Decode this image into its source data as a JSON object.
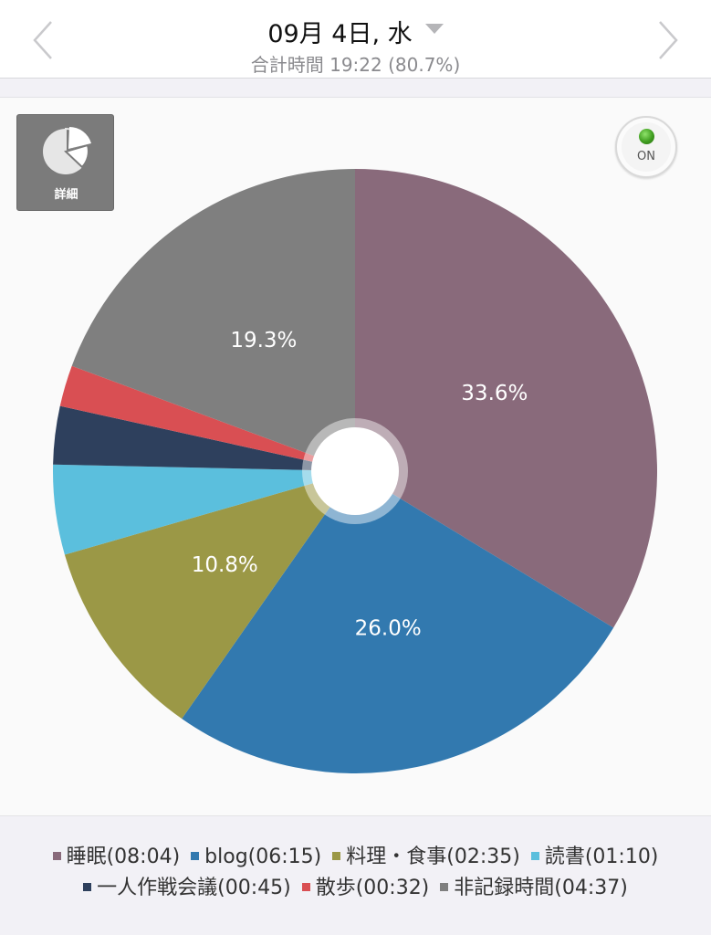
{
  "header": {
    "date": "09月 4日, 水",
    "subtitle": "合計時間 19:22 (80.7%)"
  },
  "detail_button": {
    "label": "詳細"
  },
  "toggle": {
    "label": "ON"
  },
  "chart_data": {
    "type": "pie",
    "slices": [
      {
        "label": "睡眠(08:04)",
        "value": 33.6,
        "display": "33.6%",
        "color": "#896a7b"
      },
      {
        "label": "blog(06:15)",
        "value": 26.0,
        "display": "26.0%",
        "color": "#3279af"
      },
      {
        "label": "料理・食事(02:35)",
        "value": 10.8,
        "display": "10.8%",
        "color": "#9b9846"
      },
      {
        "label": "読書(01:10)",
        "value": 4.8,
        "display": "",
        "color": "#5bbfdd"
      },
      {
        "label": "一人作戦会議(00:45)",
        "value": 3.1,
        "display": "",
        "color": "#2e405d"
      },
      {
        "label": "散歩(00:32)",
        "value": 2.2,
        "display": "",
        "color": "#d94f53"
      },
      {
        "label": "非記録時間(04:37)",
        "value": 19.3,
        "display": "19.3%",
        "color": "#7f7f7f"
      }
    ]
  },
  "legend": {
    "row1": [
      {
        "label": "睡眠(08:04)",
        "color": "#896a7b"
      },
      {
        "label": "blog(06:15)",
        "color": "#3279af"
      },
      {
        "label": "料理・食事(02:35)",
        "color": "#9b9846"
      },
      {
        "label": "読書(01:10)",
        "color": "#5bbfdd"
      }
    ],
    "row2": [
      {
        "label": "一人作戦会議(00:45)",
        "color": "#2e405d"
      },
      {
        "label": "散歩(00:32)",
        "color": "#d94f53"
      },
      {
        "label": "非記録時間(04:37)",
        "color": "#7f7f7f"
      }
    ]
  }
}
